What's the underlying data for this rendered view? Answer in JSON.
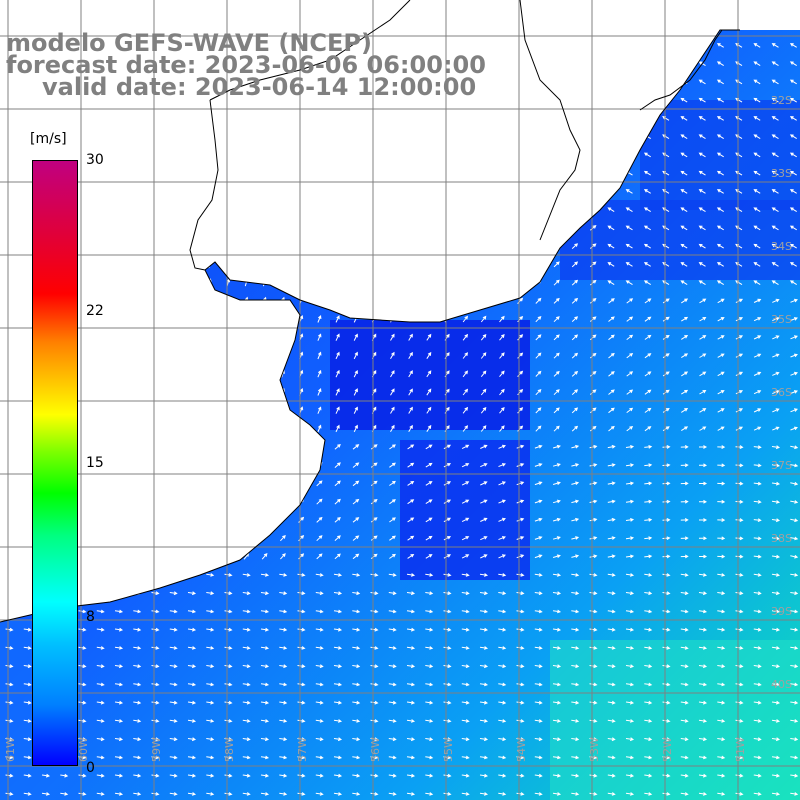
{
  "title": {
    "model": "modelo GEFS-WAVE (NCEP)",
    "forecast": "forecast date: 2023-06-06 06:00:00",
    "valid": "valid date: 2023-06-14 12:00:00"
  },
  "colorbar": {
    "unit": "[m/s]",
    "ticks": [
      "30",
      "22",
      "15",
      "8",
      "0"
    ],
    "range": [
      0,
      30
    ]
  },
  "latitude_labels": [
    "32S",
    "33S",
    "34S",
    "35S",
    "36S",
    "37S",
    "38S",
    "39S",
    "40S"
  ],
  "longitude_labels": [
    "61W",
    "60W",
    "59W",
    "58W",
    "57W",
    "56W",
    "55W",
    "54W",
    "53W",
    "52W",
    "51W"
  ],
  "colors": {
    "land": "#ffffff",
    "grid": "#808080",
    "coast": "#000000",
    "arrow": "#ffffff"
  }
}
